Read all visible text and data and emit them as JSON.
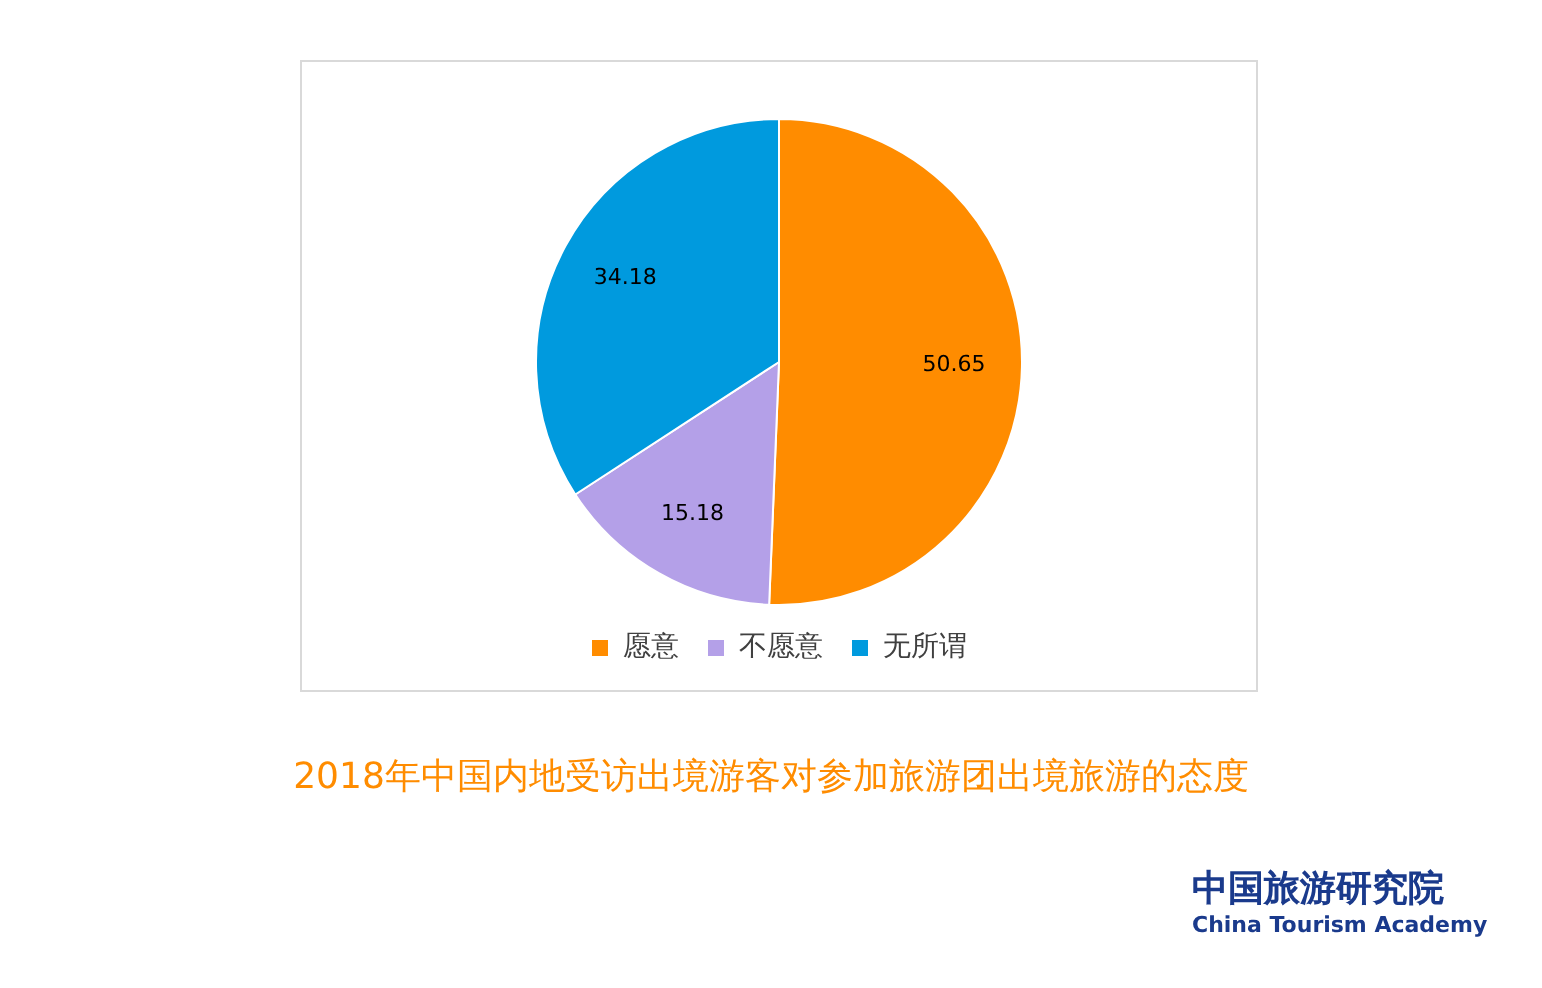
{
  "chart_data": {
    "type": "pie",
    "title": "2018年中国内地受访出境游客对参加旅游团出境旅游的态度",
    "categories": [
      "愿意",
      "不愿意",
      "无所谓"
    ],
    "values": [
      50.65,
      15.18,
      34.18
    ],
    "colors": [
      "#ff8c00",
      "#b4a0e8",
      "#009ade"
    ],
    "data_labels": true,
    "legend": "bottom",
    "annotations": [
      "中国旅游研究院",
      "China Tourism Academy"
    ]
  }
}
